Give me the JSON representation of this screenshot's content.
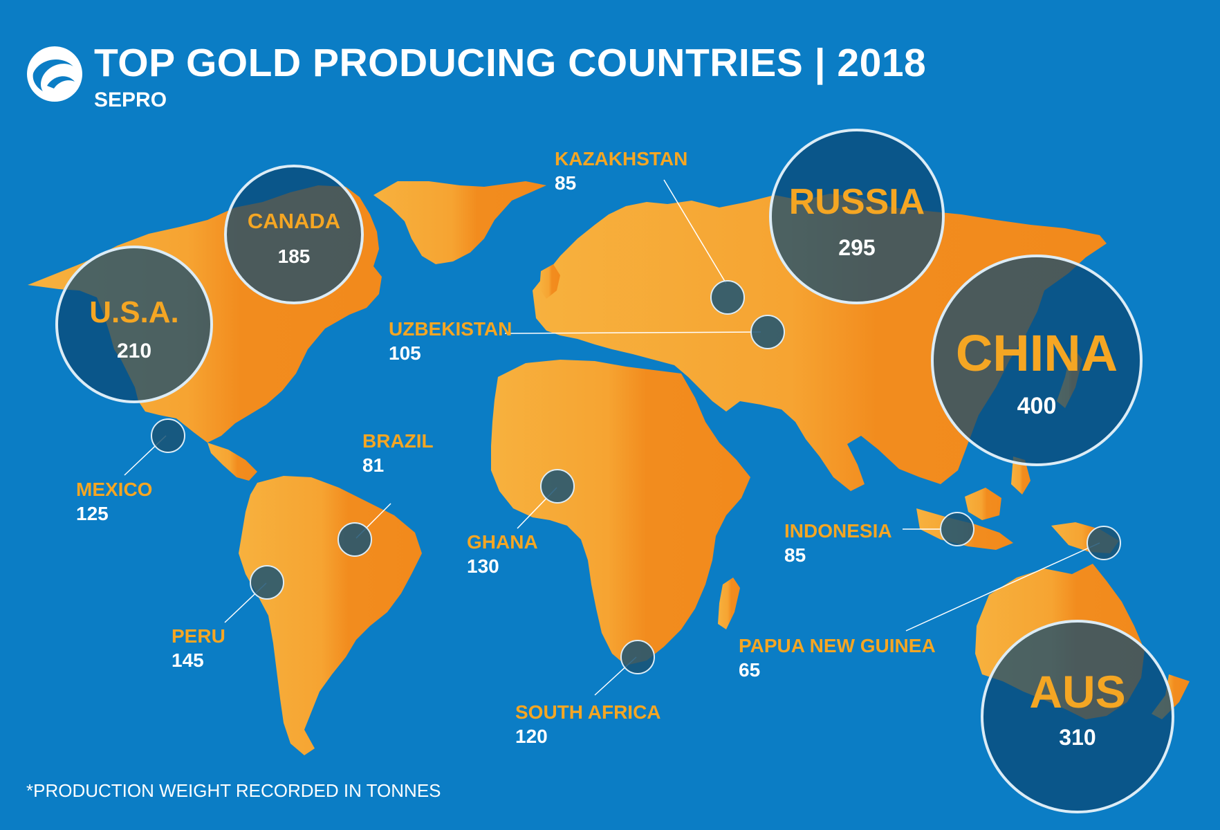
{
  "header": {
    "title": "TOP GOLD PRODUCING COUNTRIES | 2018",
    "subtitle": "SEPRO",
    "logo_icon": "sepro-logo-icon"
  },
  "footnote": "*PRODUCTION WEIGHT RECORDED IN TONNES",
  "colors": {
    "ocean": "#0b7dc5",
    "land_light": "#f7b03c",
    "land_dark": "#f28a1c",
    "circle_fill": "#0d4a78",
    "label_gold": "#f5a623",
    "value_white": "#ffffff"
  },
  "countries": {
    "usa": {
      "name": "U.S.A.",
      "value": "210"
    },
    "canada": {
      "name": "CANADA",
      "value": "185"
    },
    "russia": {
      "name": "RUSSIA",
      "value": "295"
    },
    "china": {
      "name": "CHINA",
      "value": "400"
    },
    "australia": {
      "name": "AUS",
      "value": "310"
    },
    "kazakhstan": {
      "name": "KAZAKHSTAN",
      "value": "85"
    },
    "uzbekistan": {
      "name": "UZBEKISTAN",
      "value": "105"
    },
    "brazil": {
      "name": "BRAZIL",
      "value": "81"
    },
    "mexico": {
      "name": "MEXICO",
      "value": "125"
    },
    "ghana": {
      "name": "GHANA",
      "value": "130"
    },
    "indonesia": {
      "name": "INDONESIA",
      "value": "85"
    },
    "peru": {
      "name": "PERU",
      "value": "145"
    },
    "papua_new_guinea": {
      "name": "PAPUA NEW GUINEA",
      "value": "65"
    },
    "south_africa": {
      "name": "SOUTH AFRICA",
      "value": "120"
    }
  }
}
